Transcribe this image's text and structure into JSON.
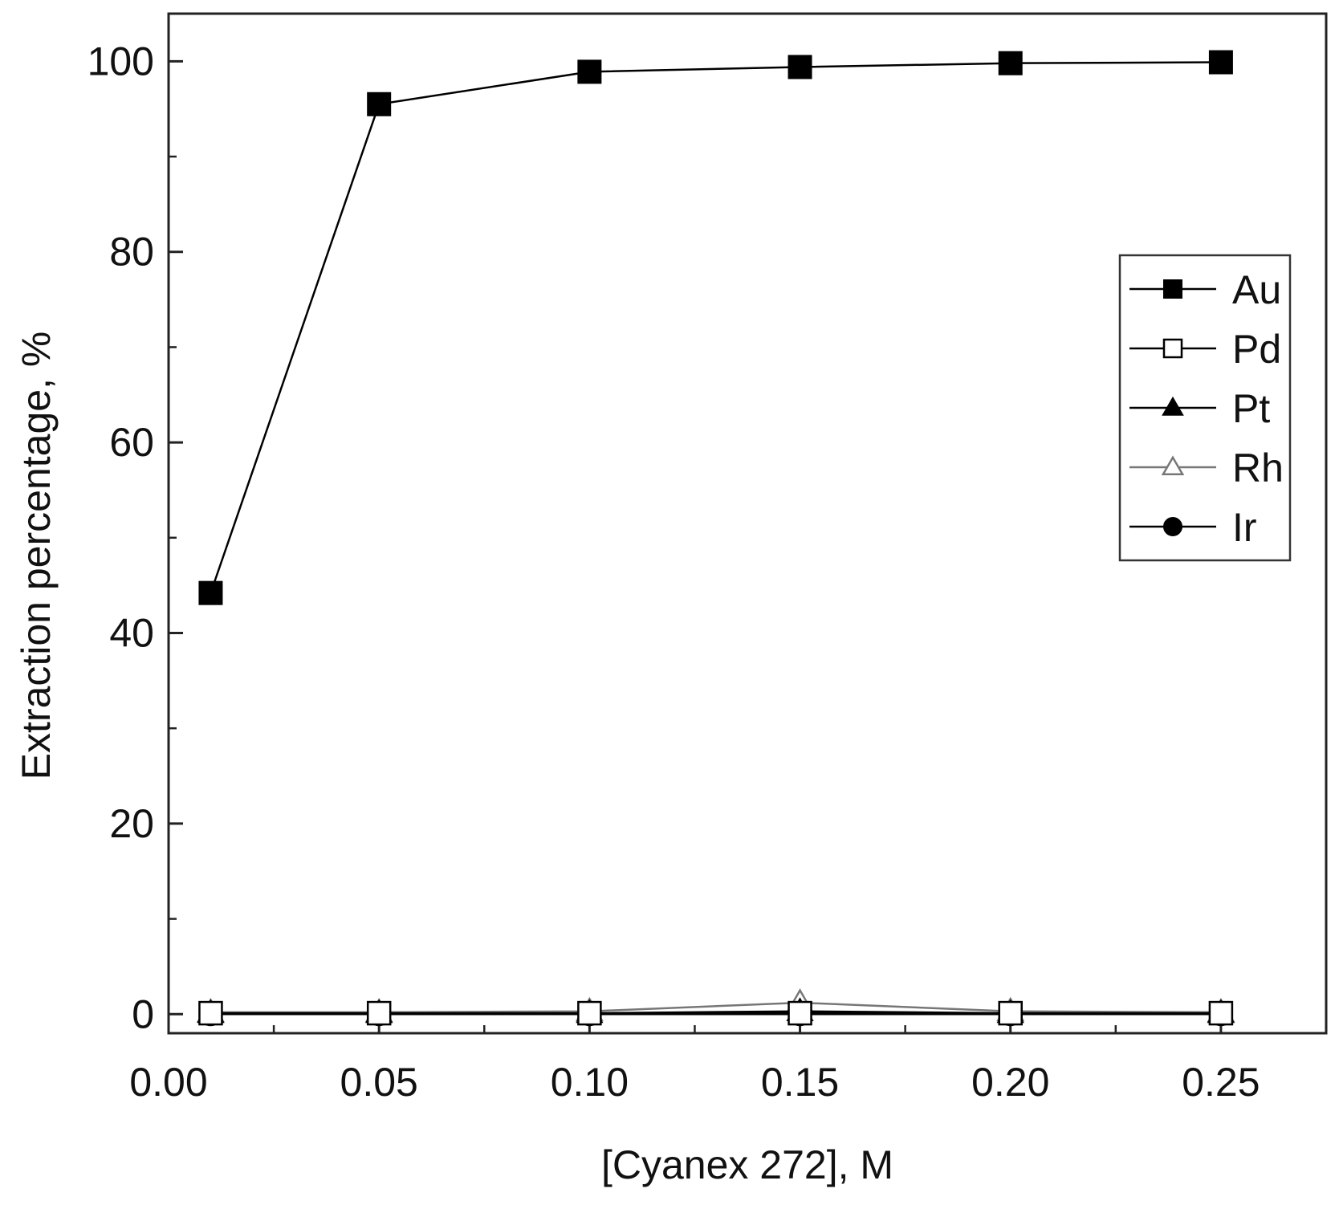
{
  "chart_data": {
    "type": "line",
    "title": "",
    "xlabel": "[Cyanex 272], M",
    "ylabel": "Extraction percentage, %",
    "xlim": [
      0.0,
      0.275
    ],
    "ylim": [
      -2,
      105
    ],
    "xticks": [
      0.0,
      0.05,
      0.1,
      0.15,
      0.2,
      0.25
    ],
    "xtick_labels": [
      "0.00",
      "0.05",
      "0.10",
      "0.15",
      "0.20",
      "0.25"
    ],
    "yticks": [
      0,
      20,
      40,
      60,
      80,
      100
    ],
    "ytick_labels": [
      "0",
      "20",
      "40",
      "60",
      "80",
      "100"
    ],
    "grid": false,
    "legend_position": "right, upper-middle",
    "x": [
      0.01,
      0.05,
      0.1,
      0.15,
      0.2,
      0.25
    ],
    "series": [
      {
        "name": "Au",
        "values": [
          44.2,
          95.5,
          98.9,
          99.4,
          99.8,
          99.9
        ],
        "marker": "filled-square",
        "color": "#000000"
      },
      {
        "name": "Pd",
        "values": [
          0.1,
          0.1,
          0.1,
          0.1,
          0.1,
          0.1
        ],
        "marker": "open-square",
        "color": "#000000"
      },
      {
        "name": "Pt",
        "values": [
          0.1,
          0.1,
          0.1,
          0.3,
          0.1,
          0.1
        ],
        "marker": "filled-triangle",
        "color": "#000000"
      },
      {
        "name": "Rh",
        "values": [
          0.2,
          0.2,
          0.3,
          1.2,
          0.3,
          0.2
        ],
        "marker": "open-triangle",
        "color": "#777777"
      },
      {
        "name": "Ir",
        "values": [
          0.0,
          0.0,
          0.0,
          0.0,
          0.0,
          0.0
        ],
        "marker": "filled-circle",
        "color": "#000000"
      }
    ]
  }
}
